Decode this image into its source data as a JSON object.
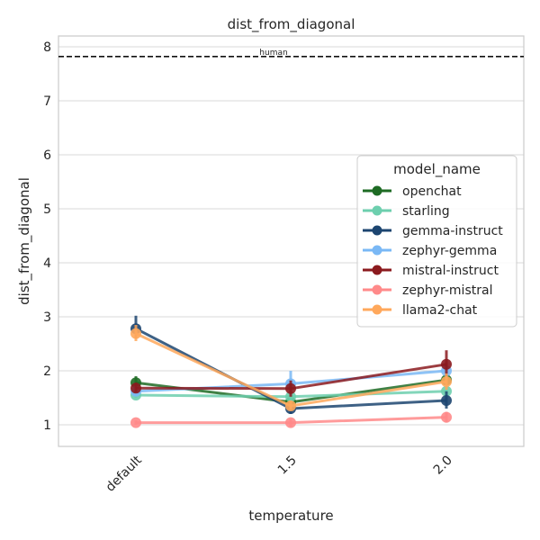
{
  "chart_data": {
    "type": "line",
    "title": "dist_from_diagonal",
    "xlabel": "temperature",
    "ylabel": "dist_from_diagonal",
    "categories": [
      "default",
      "1.5",
      "2.0"
    ],
    "ylim": [
      0.6,
      8.2
    ],
    "yticks": [
      1,
      2,
      3,
      4,
      5,
      6,
      7,
      8
    ],
    "grid": true,
    "legend": {
      "title": "model_name",
      "placement": "right"
    },
    "reference_line": {
      "label": "human",
      "value": 7.82,
      "style": "dashed",
      "color": "#111111"
    },
    "series": [
      {
        "name": "openchat",
        "color": "#1e6b24",
        "values": [
          1.78,
          1.42,
          1.83
        ],
        "err_low": [
          1.7,
          1.35,
          1.75
        ],
        "err_high": [
          1.9,
          1.5,
          1.92
        ]
      },
      {
        "name": "starling",
        "color": "#6dcfae",
        "values": [
          1.55,
          1.52,
          1.62
        ],
        "err_low": [
          1.5,
          1.45,
          1.55
        ],
        "err_high": [
          1.62,
          1.58,
          1.7
        ]
      },
      {
        "name": "gemma-instruct",
        "color": "#1c4570",
        "values": [
          2.78,
          1.3,
          1.45
        ],
        "err_low": [
          2.6,
          1.2,
          1.3
        ],
        "err_high": [
          3.02,
          1.42,
          1.62
        ]
      },
      {
        "name": "zephyr-gemma",
        "color": "#7ab8f5",
        "values": [
          1.62,
          1.76,
          2.0
        ],
        "err_low": [
          1.55,
          1.55,
          1.85
        ],
        "err_high": [
          1.7,
          2.0,
          2.15
        ]
      },
      {
        "name": "mistral-instruct",
        "color": "#8b1a1e",
        "values": [
          1.68,
          1.67,
          2.12
        ],
        "err_low": [
          1.6,
          1.52,
          1.9
        ],
        "err_high": [
          1.78,
          1.82,
          2.38
        ]
      },
      {
        "name": "zephyr-mistral",
        "color": "#ff8a8a",
        "values": [
          1.04,
          1.04,
          1.14
        ],
        "err_low": [
          1.0,
          0.96,
          1.04
        ],
        "err_high": [
          1.08,
          1.1,
          1.24
        ]
      },
      {
        "name": "llama2-chat",
        "color": "#ffa85c",
        "values": [
          2.69,
          1.35,
          1.8
        ],
        "err_low": [
          2.55,
          1.28,
          1.65
        ],
        "err_high": [
          2.85,
          1.45,
          1.95
        ]
      }
    ]
  }
}
